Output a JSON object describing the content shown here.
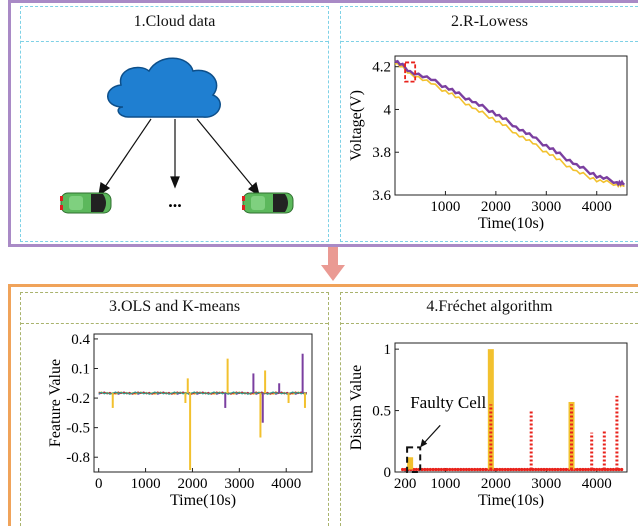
{
  "panels": {
    "p1": {
      "title": "1.Cloud data",
      "ellipsis": "..."
    },
    "p2": {
      "title": "2.R-Lowess"
    },
    "p3": {
      "title": "3.OLS and K-means"
    },
    "p4": {
      "title": "4.Fréchet algorithm",
      "annotation": "Faulty Cell"
    }
  },
  "colors": {
    "stage1_border": "#a98ac6",
    "stage2_border": "#f0a35a",
    "cloud": "#1f7fd1",
    "car": "#5cb85c",
    "arrow": "#ea9a93",
    "series_purple": "#7b3fa0",
    "series_yellow": "#f2c12e",
    "series_red": "#e8221b"
  },
  "icons": [
    "cloud-icon",
    "car-icon",
    "down-arrow-icon"
  ],
  "chart_data": [
    {
      "type": "line",
      "xlabel": "Time(10s)",
      "ylabel": "Voltage(V)",
      "xlim": [
        0,
        4600
      ],
      "ylim": [
        3.6,
        4.25
      ],
      "xticks": [
        1000,
        2000,
        3000,
        4000
      ],
      "yticks": [
        3.6,
        3.8,
        4,
        4.2
      ],
      "xtick_labels": [
        "1000",
        "2000",
        "3000",
        "4000"
      ],
      "ytick_labels": [
        "3.6",
        "3.8",
        "4",
        "4.2"
      ],
      "series": [
        {
          "x": [
            0,
            300,
            800,
            1200,
            1600,
            2000,
            2400,
            2800,
            3200,
            3600,
            4000,
            4400,
            4550
          ],
          "values": [
            4.23,
            4.18,
            4.13,
            4.08,
            4.03,
            3.98,
            3.92,
            3.86,
            3.8,
            3.74,
            3.69,
            3.66,
            3.65
          ]
        },
        {
          "x": [
            0,
            300,
            800,
            1200,
            1600,
            2000,
            2400,
            2800,
            3200,
            3600,
            4000,
            4400,
            4550
          ],
          "values": [
            4.22,
            4.17,
            4.11,
            4.06,
            4.0,
            3.95,
            3.89,
            3.83,
            3.77,
            3.71,
            3.67,
            3.65,
            3.64
          ]
        }
      ],
      "highlight_box_x": [
        200,
        400
      ]
    },
    {
      "type": "line",
      "xlabel": "Time(10s)",
      "ylabel": "Feature Value",
      "xlim": [
        -100,
        4550
      ],
      "ylim": [
        -0.95,
        0.45
      ],
      "xticks": [
        0,
        1000,
        2000,
        3000,
        4000
      ],
      "yticks": [
        0.4,
        0.1,
        -0.2,
        -0.5,
        -0.8
      ],
      "xtick_labels": [
        "0",
        "1000",
        "2000",
        "3000",
        "4000"
      ],
      "ytick_labels": [
        "0.4",
        "0.1",
        "-0.2",
        "-0.5",
        "-0.8"
      ],
      "baseline": -0.15,
      "spikes": [
        {
          "x": 300,
          "value": -0.3,
          "color": "#f2c12e"
        },
        {
          "x": 1950,
          "value": -0.93,
          "color": "#f2c12e"
        },
        {
          "x": 1850,
          "value": -0.25,
          "color": "#f2c12e"
        },
        {
          "x": 1900,
          "value": 0.0,
          "color": "#f2c12e"
        },
        {
          "x": 2750,
          "value": 0.2,
          "color": "#f2c12e"
        },
        {
          "x": 2700,
          "value": -0.3,
          "color": "#7b3fa0"
        },
        {
          "x": 3300,
          "value": 0.05,
          "color": "#7b3fa0"
        },
        {
          "x": 3450,
          "value": -0.6,
          "color": "#f2c12e"
        },
        {
          "x": 3500,
          "value": -0.45,
          "color": "#7b3fa0"
        },
        {
          "x": 3550,
          "value": 0.08,
          "color": "#f2c12e"
        },
        {
          "x": 3850,
          "value": -0.05,
          "color": "#7b3fa0"
        },
        {
          "x": 4050,
          "value": -0.25,
          "color": "#f2c12e"
        },
        {
          "x": 4350,
          "value": 0.25,
          "color": "#7b3fa0"
        },
        {
          "x": 4400,
          "value": -0.3,
          "color": "#f2c12e"
        }
      ]
    },
    {
      "type": "line",
      "xlabel": "Time(10s)",
      "ylabel": "Dissim Value",
      "xlim": [
        0,
        4600
      ],
      "ylim": [
        0,
        1.05
      ],
      "xticks": [
        200,
        1000,
        2000,
        3000,
        4000
      ],
      "yticks": [
        0,
        0.5,
        1
      ],
      "xtick_labels": [
        "200",
        "1000",
        "2000",
        "3000",
        "4000"
      ],
      "ytick_labels": [
        "0",
        "0.5",
        "1"
      ],
      "yellow_peaks": [
        {
          "x": 300,
          "value": 0.12
        },
        {
          "x": 1900,
          "value": 1.0
        },
        {
          "x": 3500,
          "value": 0.57
        }
      ],
      "red_peaks": [
        {
          "x": 1900,
          "value": 0.55
        },
        {
          "x": 2700,
          "value": 0.5
        },
        {
          "x": 3500,
          "value": 0.55
        },
        {
          "x": 3900,
          "value": 0.32
        },
        {
          "x": 4150,
          "value": 0.33
        },
        {
          "x": 4400,
          "value": 0.62
        }
      ],
      "faulty_box_x": [
        240,
        500
      ]
    }
  ]
}
